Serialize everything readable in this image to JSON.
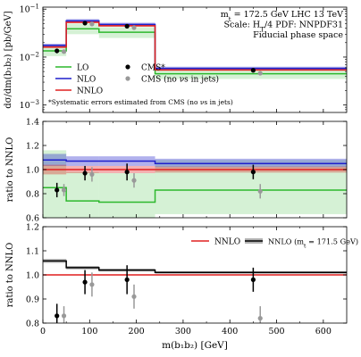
{
  "chart_data": {
    "type": "line",
    "x_label": "m(b₁b₂) [GeV]",
    "x_range": [
      0,
      650
    ],
    "x_ticks": [
      0,
      100,
      200,
      300,
      400,
      500,
      600
    ],
    "bin_edges": [
      0,
      50,
      120,
      240,
      650
    ],
    "colors": {
      "lo": "#2db82d",
      "nlo": "#1f1fcc",
      "nnlo": "#e02020",
      "cms": "#000000",
      "cms_nonu": "#999999",
      "nnlo_alt": "#000000"
    },
    "panels": [
      {
        "id": "cross-section",
        "ylabel": "dσ/dm(b₁b₂) [pb/GeV]",
        "yscale": "log",
        "ylim": [
          0.0007,
          0.11
        ],
        "ticks": [
          {
            "value": 0.1,
            "base": "10",
            "exp": "−1"
          },
          {
            "value": 0.01,
            "base": "10",
            "exp": "−2"
          },
          {
            "value": 0.001,
            "base": "10",
            "exp": "−3"
          }
        ],
        "annotation_lines": [
          "m_t = 172.5 GeV LHC 13 TeV",
          "Scale: H_T/4 PDF: NNPDF31",
          "Fiducial phase space"
        ],
        "footnote": "*Systematic errors estimated from CMS (no νs in jets)",
        "legend": {
          "lo": "LO",
          "nlo": "NLO",
          "nnlo": "NNLO",
          "cms": "CMS*",
          "cms_nonu": "CMS (no νs in jets)"
        },
        "series": [
          {
            "key": "lo",
            "values": [
              0.0135,
              0.039,
              0.033,
              0.0045
            ],
            "band": [
              [
                0.0105,
                0.0175
              ],
              [
                0.03,
                0.05
              ],
              [
                0.025,
                0.042
              ],
              [
                0.0035,
                0.0058
              ]
            ]
          },
          {
            "key": "nlo",
            "values": [
              0.0175,
              0.057,
              0.048,
              0.0058
            ],
            "band": [
              [
                0.0162,
                0.019
              ],
              [
                0.052,
                0.062
              ],
              [
                0.044,
                0.052
              ],
              [
                0.0053,
                0.0063
              ]
            ]
          },
          {
            "key": "nnlo",
            "values": [
              0.0162,
              0.053,
              0.045,
              0.0054
            ],
            "band": [
              [
                0.0155,
                0.017
              ],
              [
                0.051,
                0.056
              ],
              [
                0.043,
                0.047
              ],
              [
                0.0052,
                0.0056
              ]
            ]
          }
        ],
        "points": [
          {
            "key": "cms",
            "x": [
              30,
              90,
              180,
              450
            ],
            "y": [
              0.0135,
              0.051,
              0.044,
              0.0053
            ],
            "err": [
              0.0015,
              0.004,
              0.004,
              0.0005
            ]
          },
          {
            "key": "cms_nonu",
            "x": [
              45,
              105,
              195,
              465
            ],
            "y": [
              0.013,
              0.049,
              0.041,
              0.0046
            ],
            "err": [
              0.0012,
              0.003,
              0.003,
              0.0004
            ]
          }
        ]
      },
      {
        "id": "ratio-all",
        "ylabel": "ratio to NNLO",
        "yscale": "linear",
        "ylim": [
          0.6,
          1.4
        ],
        "yticks": [
          0.6,
          0.8,
          1.0,
          1.2,
          1.4
        ],
        "series": [
          {
            "key": "lo",
            "values": [
              0.85,
              0.74,
              0.73,
              0.83
            ],
            "band": [
              [
                0.58,
                1.16
              ],
              [
                0.56,
                0.98
              ],
              [
                0.56,
                0.97
              ],
              [
                0.63,
                1.08
              ]
            ]
          },
          {
            "key": "nlo",
            "values": [
              1.08,
              1.07,
              1.07,
              1.05
            ],
            "band": [
              [
                1.03,
                1.13
              ],
              [
                1.03,
                1.11
              ],
              [
                1.03,
                1.11
              ],
              [
                1.02,
                1.09
              ]
            ]
          },
          {
            "key": "nnlo",
            "values": [
              1.0,
              1.0,
              1.0,
              1.0
            ],
            "band": [
              [
                0.96,
                1.04
              ],
              [
                0.97,
                1.03
              ],
              [
                0.97,
                1.03
              ],
              [
                0.975,
                1.025
              ]
            ]
          }
        ],
        "points": [
          {
            "key": "cms",
            "x": [
              30,
              90,
              180,
              450
            ],
            "y": [
              0.83,
              0.97,
              0.98,
              0.98
            ],
            "err": [
              0.06,
              0.06,
              0.07,
              0.06
            ]
          },
          {
            "key": "cms_nonu",
            "x": [
              45,
              105,
              195,
              465
            ],
            "y": [
              0.83,
              0.96,
              0.91,
              0.82
            ],
            "err": [
              0.05,
              0.06,
              0.06,
              0.06
            ]
          }
        ]
      },
      {
        "id": "ratio-mt",
        "ylabel": "ratio to NNLO",
        "yscale": "linear",
        "ylim": [
          0.8,
          1.2
        ],
        "yticks": [
          0.8,
          0.9,
          1.0,
          1.1,
          1.2
        ],
        "legend": {
          "nnlo": "NNLO",
          "nnlo_alt": "NNLO (m_t = 171.5 GeV)"
        },
        "series": [
          {
            "key": "nnlo",
            "values": [
              1.0,
              1.0,
              1.0,
              1.0
            ],
            "band": [
              [
                0.998,
                1.002
              ],
              [
                0.998,
                1.002
              ],
              [
                0.998,
                1.002
              ],
              [
                0.998,
                1.002
              ]
            ]
          },
          {
            "key": "nnlo_alt",
            "values": [
              1.058,
              1.03,
              1.02,
              1.01
            ],
            "band": [
              [
                1.05,
                1.066
              ],
              [
                1.023,
                1.037
              ],
              [
                1.014,
                1.026
              ],
              [
                1.005,
                1.015
              ]
            ]
          }
        ],
        "points": [
          {
            "key": "cms",
            "x": [
              30,
              90,
              180,
              450
            ],
            "y": [
              0.83,
              0.97,
              0.98,
              0.98
            ],
            "err": [
              0.05,
              0.05,
              0.06,
              0.05
            ]
          },
          {
            "key": "cms_nonu",
            "x": [
              45,
              105,
              195,
              465
            ],
            "y": [
              0.83,
              0.96,
              0.91,
              0.82
            ],
            "err": [
              0.04,
              0.05,
              0.05,
              0.05
            ]
          }
        ]
      }
    ]
  }
}
